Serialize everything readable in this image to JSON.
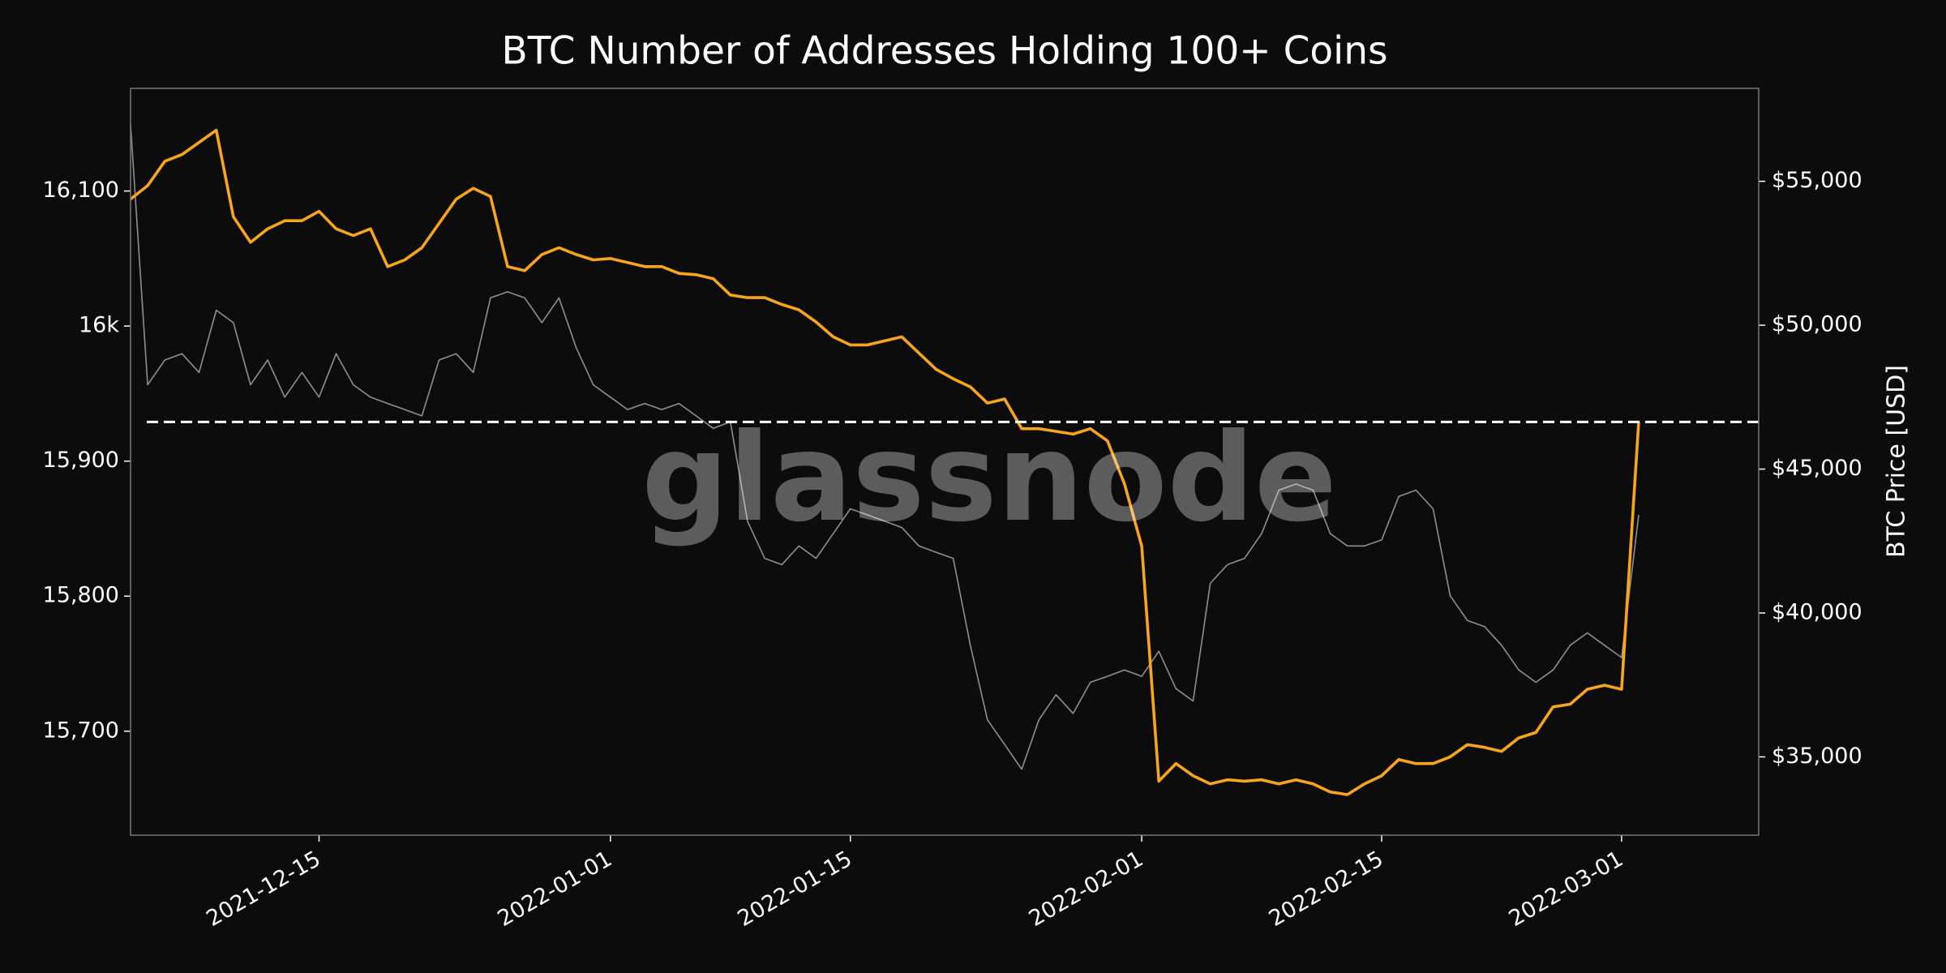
{
  "chart_data": {
    "type": "line",
    "title": "BTC Number of Addresses Holding 100+ Coins",
    "y2label": "BTC Price [USD]",
    "watermark": "glassnode",
    "x": [
      "2021-12-04",
      "2021-12-05",
      "2021-12-06",
      "2021-12-07",
      "2021-12-08",
      "2021-12-09",
      "2021-12-10",
      "2021-12-11",
      "2021-12-12",
      "2021-12-13",
      "2021-12-14",
      "2021-12-15",
      "2021-12-16",
      "2021-12-17",
      "2021-12-18",
      "2021-12-19",
      "2021-12-20",
      "2021-12-21",
      "2021-12-22",
      "2021-12-23",
      "2021-12-24",
      "2021-12-25",
      "2021-12-26",
      "2021-12-27",
      "2021-12-28",
      "2021-12-29",
      "2021-12-30",
      "2021-12-31",
      "2022-01-01",
      "2022-01-02",
      "2022-01-03",
      "2022-01-04",
      "2022-01-05",
      "2022-01-06",
      "2022-01-07",
      "2022-01-08",
      "2022-01-09",
      "2022-01-10",
      "2022-01-11",
      "2022-01-12",
      "2022-01-13",
      "2022-01-14",
      "2022-01-15",
      "2022-01-16",
      "2022-01-17",
      "2022-01-18",
      "2022-01-19",
      "2022-01-20",
      "2022-01-21",
      "2022-01-22",
      "2022-01-23",
      "2022-01-24",
      "2022-01-25",
      "2022-01-26",
      "2022-01-27",
      "2022-01-28",
      "2022-01-29",
      "2022-01-30",
      "2022-01-31",
      "2022-02-01",
      "2022-02-02",
      "2022-02-03",
      "2022-02-04",
      "2022-02-05",
      "2022-02-06",
      "2022-02-07",
      "2022-02-08",
      "2022-02-09",
      "2022-02-10",
      "2022-02-11",
      "2022-02-12",
      "2022-02-13",
      "2022-02-14",
      "2022-02-15",
      "2022-02-16",
      "2022-02-17",
      "2022-02-18",
      "2022-02-19",
      "2022-02-20",
      "2022-02-21",
      "2022-02-22",
      "2022-02-23",
      "2022-02-24",
      "2022-02-25",
      "2022-02-26",
      "2022-02-27",
      "2022-02-28",
      "2022-03-01",
      "2022-03-02"
    ],
    "series": [
      {
        "color": "#f7a51c",
        "values": [
          16094,
          16104,
          16122,
          16127,
          16136,
          16145,
          16081,
          16062,
          16072,
          16078,
          16078,
          16085,
          16072,
          16067,
          16072,
          16044,
          16049,
          16058,
          16076,
          16094,
          16102,
          16096,
          16044,
          16041,
          16053,
          16058,
          16053,
          16049,
          16050,
          16047,
          16044,
          16044,
          16039,
          16038,
          16035,
          16023,
          16021,
          16021,
          16016,
          16012,
          16003,
          15992,
          15986,
          15986,
          15989,
          15992,
          15980,
          15968,
          15961,
          15955,
          15943,
          15946,
          15924,
          15924,
          15922,
          15920,
          15924,
          15915,
          15883,
          15837,
          15663,
          15676,
          15667,
          15661,
          15664,
          15663,
          15664,
          15661,
          15664,
          15661,
          15655,
          15653,
          15661,
          15667,
          15679,
          15676,
          15676,
          15681,
          15690,
          15688,
          15685,
          15695,
          15699,
          15718,
          15720,
          15731,
          15734,
          15731,
          15929
        ]
      },
      {
        "color": "#8f8f8f",
        "axis": "y2",
        "values": [
          56980,
          47930,
          48790,
          49010,
          48360,
          50520,
          50090,
          47930,
          48790,
          47500,
          48360,
          47500,
          49010,
          47930,
          47500,
          47280,
          47070,
          46850,
          48790,
          49010,
          48360,
          50950,
          51160,
          50950,
          50090,
          50950,
          49220,
          47930,
          47500,
          47070,
          47280,
          47070,
          47280,
          46850,
          46420,
          46640,
          43190,
          41900,
          41680,
          42330,
          41900,
          42760,
          43620,
          43410,
          43190,
          42970,
          42330,
          42110,
          41900,
          38880,
          36290,
          35430,
          34570,
          36290,
          37160,
          36510,
          37590,
          37800,
          38020,
          37800,
          38670,
          37370,
          36940,
          41030,
          41680,
          41900,
          42760,
          44270,
          44480,
          44270,
          42760,
          42330,
          42330,
          42540,
          44050,
          44270,
          43620,
          40600,
          39740,
          39530,
          38880,
          38020,
          37590,
          38020,
          38880,
          39310,
          38880,
          38450,
          43410
        ]
      }
    ],
    "reference_line": 15929,
    "xlim": [
      "2021-12-04",
      "2022-03-09"
    ],
    "xticks": [
      "2021-12-15",
      "2022-01-01",
      "2022-01-15",
      "2022-02-01",
      "2022-02-15",
      "2022-03-01"
    ],
    "ylim": [
      15623,
      16176
    ],
    "yticks": [
      {
        "value": 15700,
        "label": "15,700"
      },
      {
        "value": 15800,
        "label": "15,800"
      },
      {
        "value": 15900,
        "label": "15,900"
      },
      {
        "value": 16000,
        "label": "16k"
      },
      {
        "value": 16100,
        "label": "16,100"
      }
    ],
    "y2lim": [
      32280,
      58230
    ],
    "y2ticks": [
      {
        "value": 35000,
        "label": "$35,000"
      },
      {
        "value": 40000,
        "label": "$40,000"
      },
      {
        "value": 45000,
        "label": "$45,000"
      },
      {
        "value": 50000,
        "label": "$50,000"
      },
      {
        "value": 55000,
        "label": "$55,000"
      }
    ],
    "grid": false
  }
}
